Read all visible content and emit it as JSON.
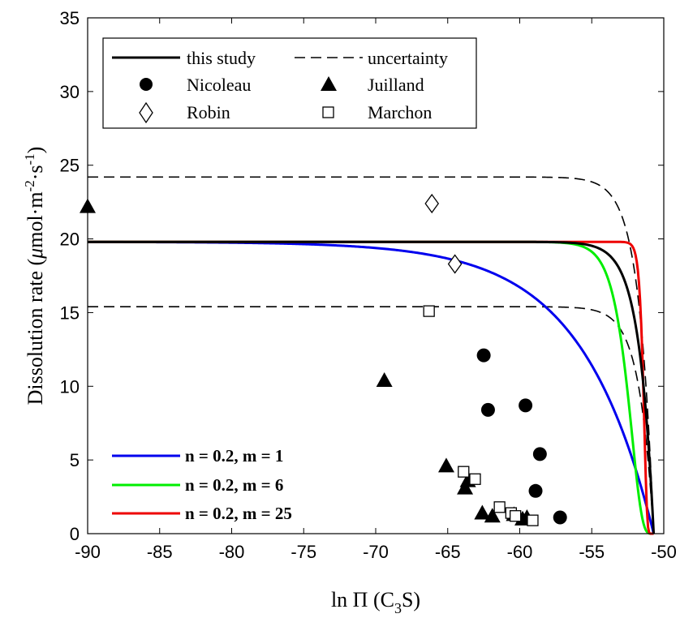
{
  "chart_data": {
    "type": "line",
    "xlabel": "ln Π (C",
    "xlabel_sub": "3",
    "xlabel_end": "S)",
    "ylabel": "Dissolution rate (",
    "ylabel_mu": "μ",
    "ylabel_units": "mol·m",
    "ylabel_exp1": "-2",
    "ylabel_dot": "·s",
    "ylabel_exp2": "-1",
    "ylabel_close": ")",
    "xlim": [
      -90,
      -50
    ],
    "ylim": [
      0,
      35
    ],
    "xticks": [
      -90,
      -85,
      -80,
      -75,
      -70,
      -65,
      -60,
      -55,
      -50
    ],
    "yticks": [
      0,
      5,
      10,
      15,
      20,
      25,
      30,
      35
    ],
    "x_end": -50.7,
    "model": {
      "name": "this study",
      "plateau": 19.8,
      "upper": 24.2,
      "lower": 15.4,
      "uncertainty_name": "uncertainty",
      "color": "#000000"
    },
    "series": [
      {
        "name": "n = 0.2, m = 1",
        "n": 0.2,
        "m": 1,
        "color": "#0000ee"
      },
      {
        "name": "n = 0.2, m = 6",
        "n": 0.2,
        "m": 6,
        "color": "#00ee00"
      },
      {
        "name": "n = 0.2, m = 25",
        "n": 0.2,
        "m": 25,
        "color": "#ee0000"
      }
    ],
    "points": [
      {
        "name": "Nicoleau",
        "marker": "circle",
        "data": [
          [
            -62.5,
            12.1
          ],
          [
            -62.2,
            8.4
          ],
          [
            -59.6,
            8.7
          ],
          [
            -58.6,
            5.4
          ],
          [
            -58.9,
            2.9
          ],
          [
            -57.2,
            1.1
          ]
        ]
      },
      {
        "name": "Juilland",
        "marker": "triangle",
        "data": [
          [
            -90,
            22.2
          ],
          [
            -69.4,
            10.4
          ],
          [
            -65.1,
            4.6
          ],
          [
            -63.8,
            3.1
          ],
          [
            -63.6,
            3.6
          ],
          [
            -62.6,
            1.4
          ],
          [
            -61.9,
            1.2
          ],
          [
            -60.4,
            1.3
          ],
          [
            -59.8,
            1.0
          ],
          [
            -59.5,
            1.1
          ]
        ]
      },
      {
        "name": "Robin",
        "marker": "diamond",
        "data": [
          [
            -66.1,
            22.4
          ],
          [
            -64.5,
            18.3
          ]
        ]
      },
      {
        "name": "Marchon",
        "marker": "square",
        "data": [
          [
            -66.3,
            15.1
          ],
          [
            -63.9,
            4.2
          ],
          [
            -63.1,
            3.7
          ],
          [
            -61.4,
            1.8
          ],
          [
            -60.6,
            1.4
          ],
          [
            -60.3,
            1.2
          ],
          [
            -59.1,
            0.9
          ]
        ]
      }
    ],
    "legend_placement": "top-left",
    "grid": false
  }
}
